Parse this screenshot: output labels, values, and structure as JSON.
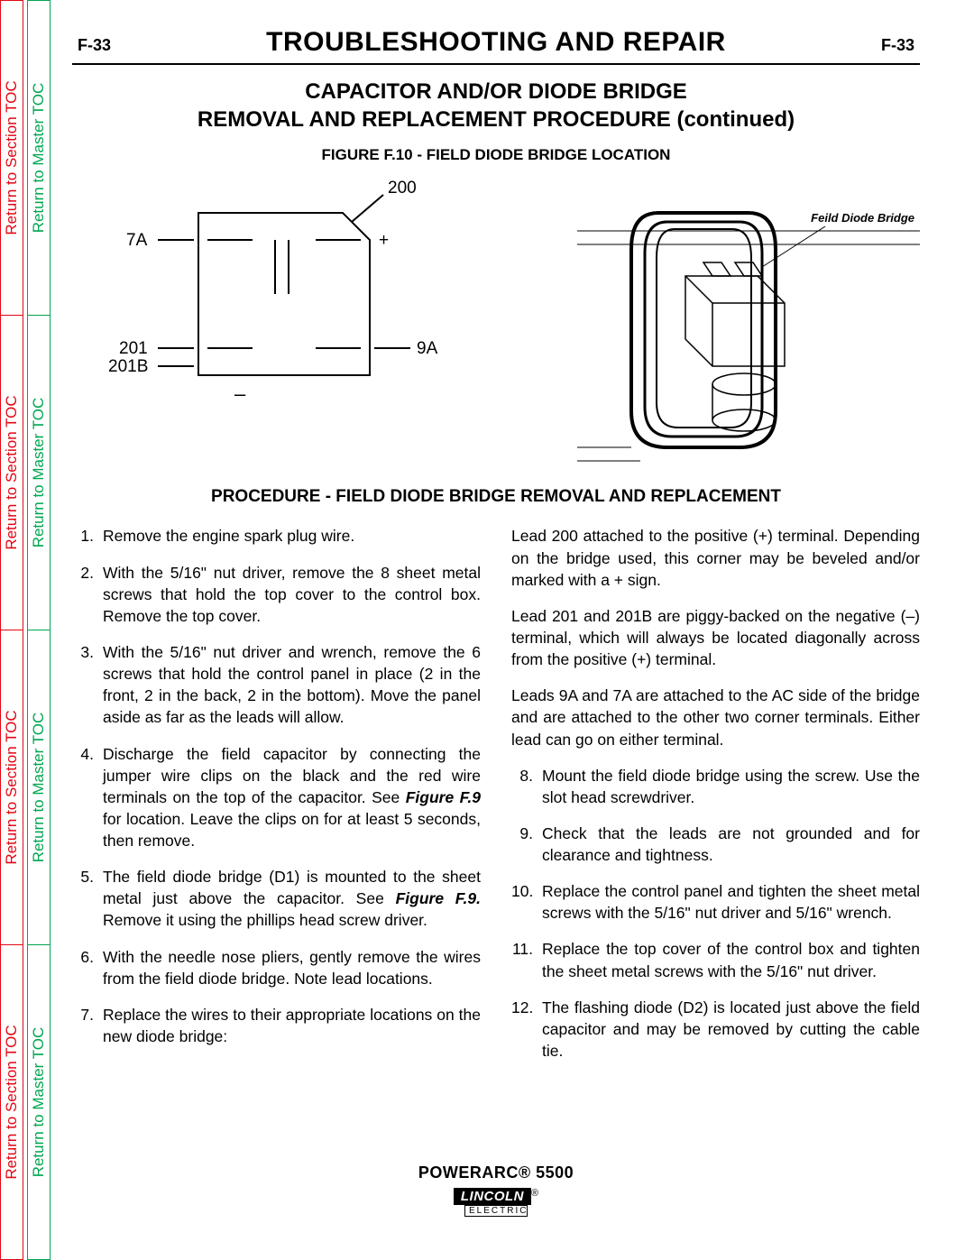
{
  "side_tabs": {
    "section_label": "Return to Section TOC",
    "master_label": "Return to Master TOC",
    "section_color": "#e30613",
    "master_color": "#00a651",
    "segment_count": 4
  },
  "header": {
    "page_id_left": "F-33",
    "title": "TROUBLESHOOTING AND REPAIR",
    "page_id_right": "F-33"
  },
  "subtitle_line1": "CAPACITOR AND/OR DIODE BRIDGE",
  "subtitle_line2": "REMOVAL AND REPLACEMENT PROCEDURE (continued)",
  "figure_caption": "FIGURE F.10 - FIELD DIODE BRIDGE LOCATION",
  "figure_left": {
    "label_200": "200",
    "label_7A": "7A",
    "label_plus": "+",
    "label_201": "201",
    "label_201B": "201B",
    "label_9A": "9A",
    "label_minus": "–"
  },
  "figure_right": {
    "callout": "Feild Diode Bridge"
  },
  "procedure_title": "PROCEDURE - FIELD DIODE BRIDGE REMOVAL AND REPLACEMENT",
  "steps_left": [
    {
      "n": "1.",
      "t": "Remove the engine spark plug wire."
    },
    {
      "n": "2.",
      "t": "With the 5/16\" nut driver, remove the 8 sheet metal screws that hold the top cover to the control box. Remove the top cover."
    },
    {
      "n": "3.",
      "t": "With the 5/16\" nut driver and wrench, remove the 6 screws that hold the control panel in place (2 in the front, 2 in the back, 2 in the bottom).  Move the panel aside as far as the leads will allow."
    },
    {
      "n": "4.",
      "pre": "Discharge the field capacitor by connecting the jumper wire clips on the black and the red wire terminals on the top of the capacitor.  See ",
      "ref": "Figure F.9",
      "post": " for location.  Leave the clips on for at least 5 seconds, then remove."
    },
    {
      "n": "5.",
      "pre": "The field diode bridge (D1) is mounted to the sheet metal just above the capacitor.  See ",
      "ref": "Figure F.9.",
      "post": "  Remove it using the phillips head screw driver."
    },
    {
      "n": "6.",
      "t": "With the needle nose pliers, gently remove the  wires from the field diode bridge.  Note lead locations."
    },
    {
      "n": "7.",
      "t": "Replace the wires to their appropriate locations on the new diode bridge:"
    }
  ],
  "paras_right": [
    "Lead 200 attached to the positive (+) terminal.  Depending on the bridge used, this corner may be beveled and/or marked with a + sign.",
    "Lead 201 and 201B  are piggy-backed on the negative (–) terminal, which will always be located diagonally across from the positive (+) terminal.",
    "Leads 9A and 7A are attached to the AC side of the bridge and are attached to the other two corner terminals.  Either lead can go on either terminal."
  ],
  "steps_right": [
    {
      "n": "8.",
      "t": "Mount the field diode bridge using the screw.  Use the slot head screwdriver."
    },
    {
      "n": "9.",
      "t": "Check that the leads are not grounded and for clearance and tightness."
    },
    {
      "n": "10.",
      "t": "Replace the control panel and tighten the  sheet metal screws with the 5/16\" nut driver and 5/16\" wrench."
    },
    {
      "n": "11.",
      "t": "Replace the top cover of the control box and tighten the  sheet metal screws with the 5/16\" nut driver."
    },
    {
      "n": "12.",
      "t": "The flashing diode (D2) is located just above the field capacitor and may be removed by cutting the cable tie."
    }
  ],
  "footer": {
    "product": "POWERARC® 5500",
    "logo_top": "LINCOLN",
    "logo_reg": "®",
    "logo_bot": "ELECTRIC"
  }
}
